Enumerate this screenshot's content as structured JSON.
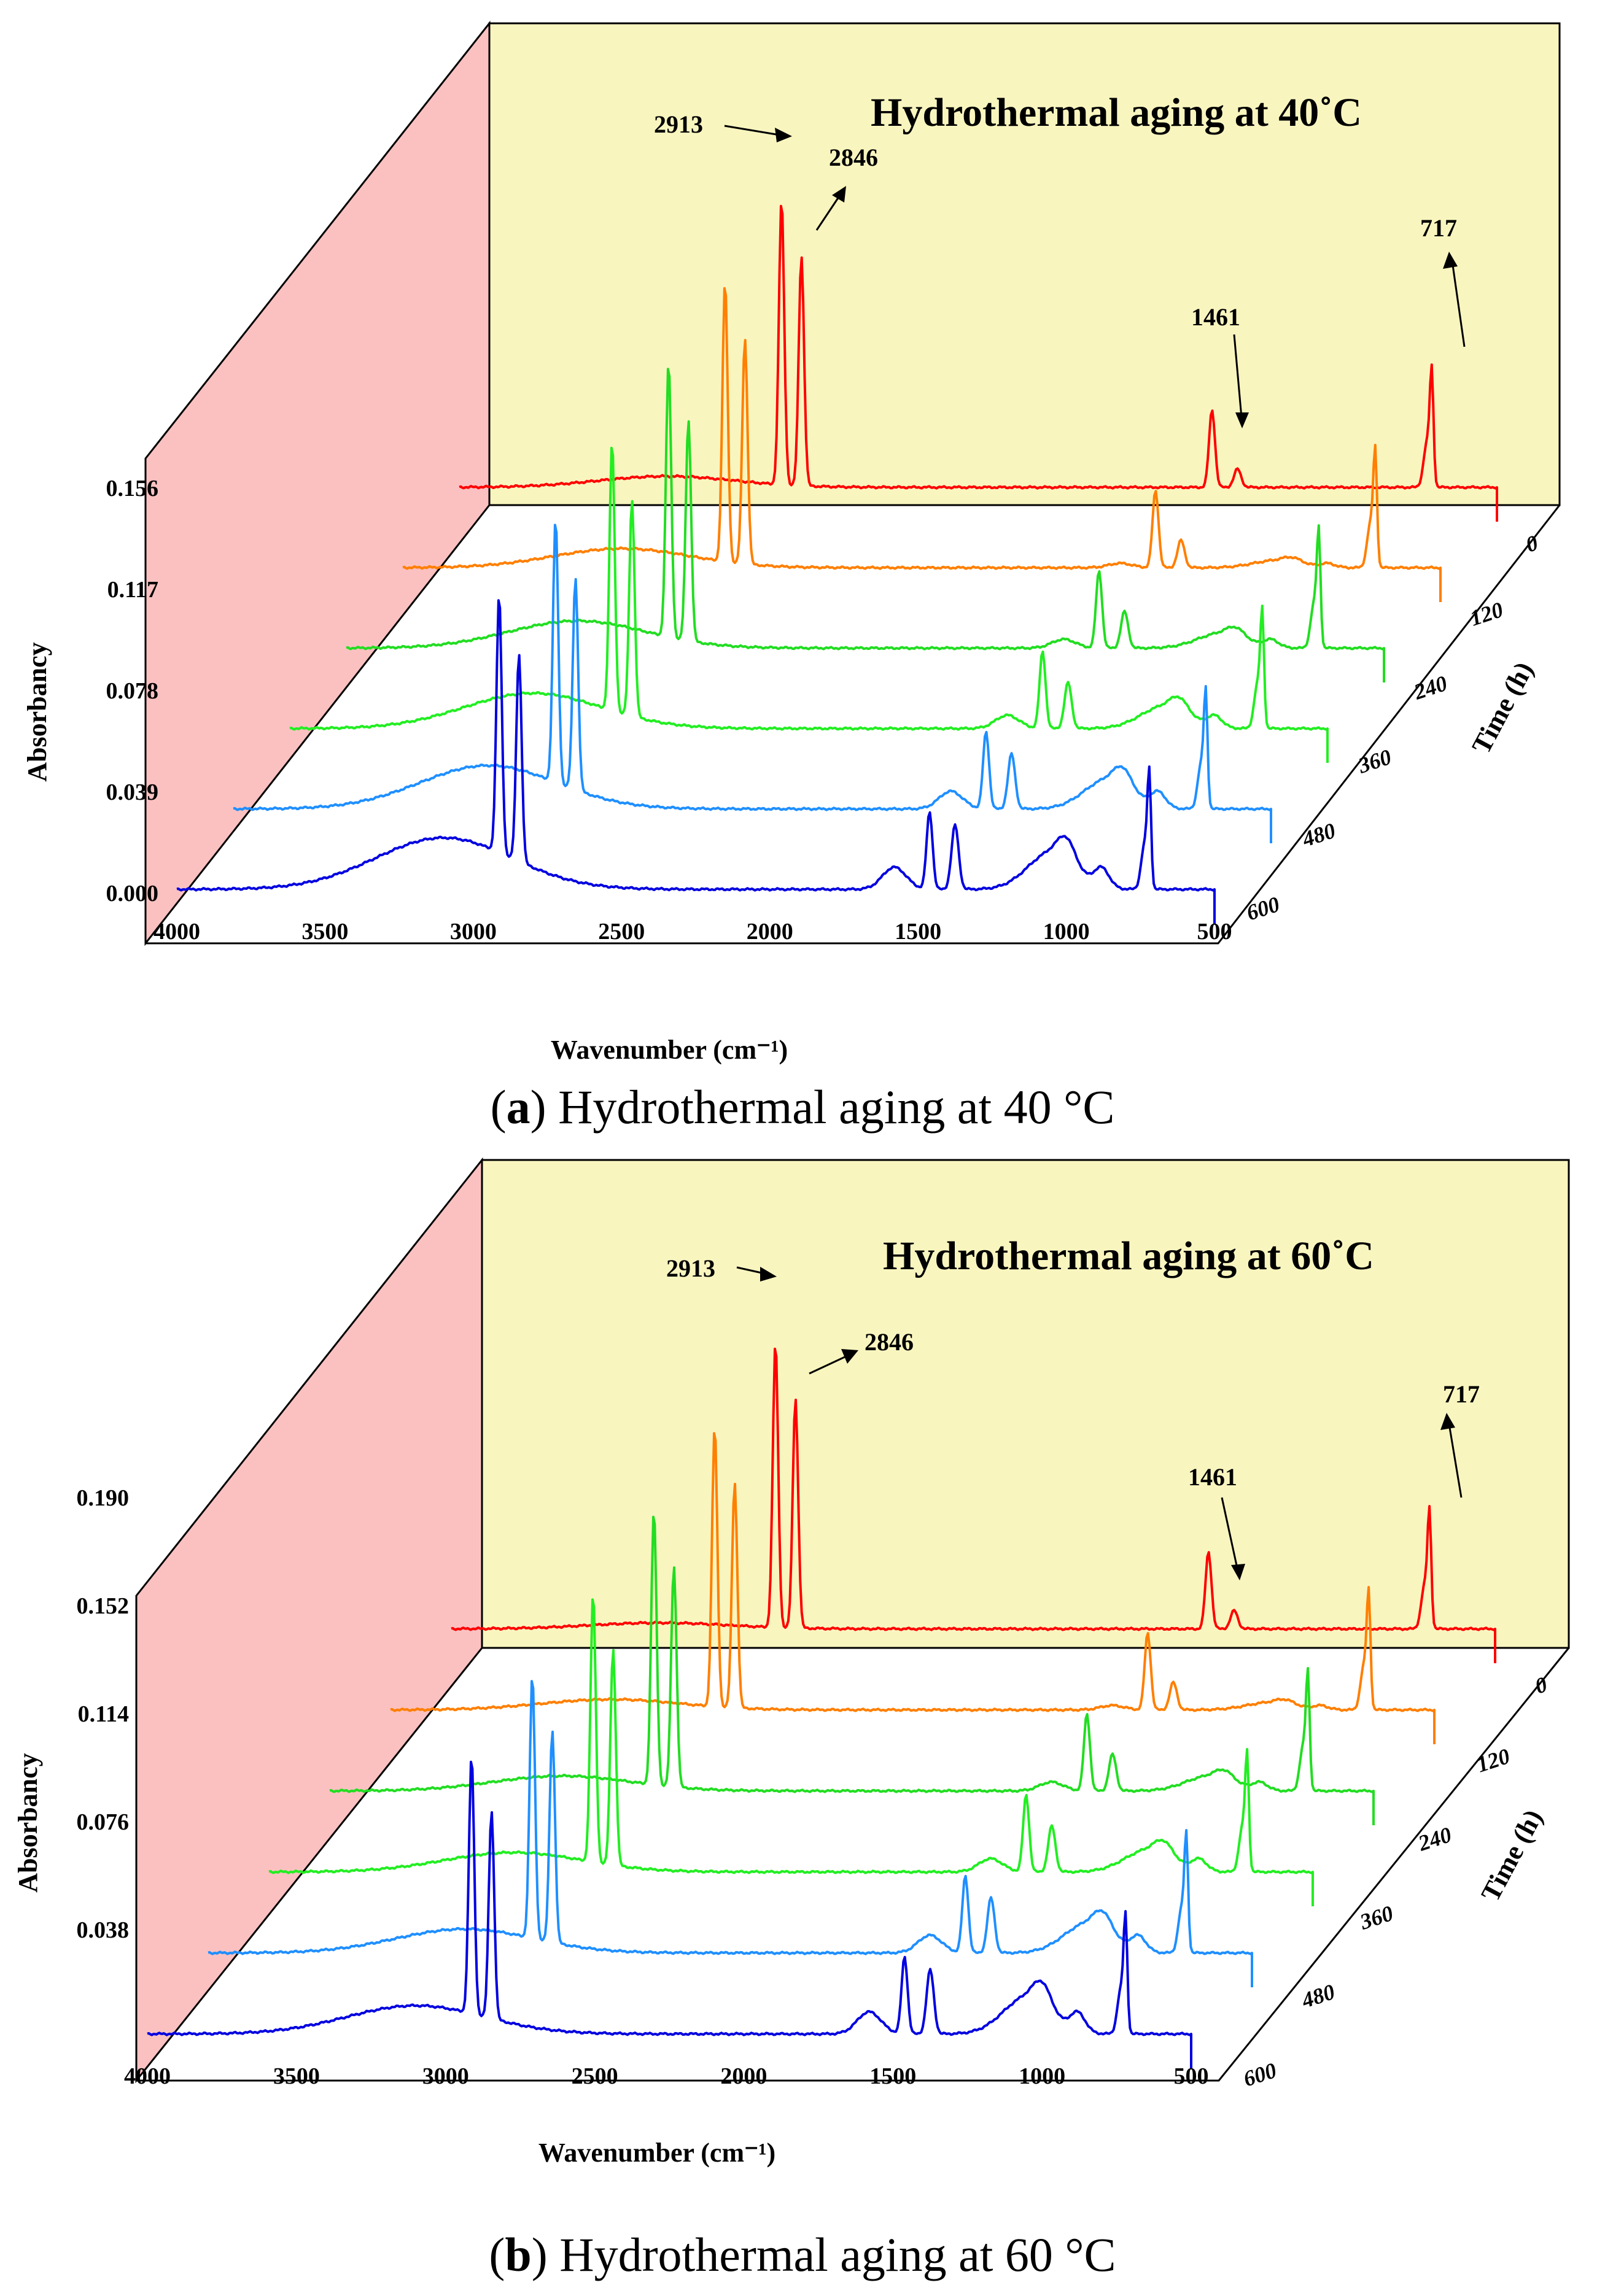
{
  "chart_data": [
    {
      "type": "line",
      "title": "Hydrothermal aging at 40˚C",
      "caption_letter": "a",
      "caption_text": "Hydrothermal aging at 40 °C",
      "caption_open": "(",
      "caption_close": ")",
      "xlabel": "Wavenumber (cm⁻¹)",
      "ylabel": "Absorbancy",
      "zlabel": "Time (h)",
      "xlim": [
        4000,
        500
      ],
      "xticks": [
        "4000",
        "3500",
        "3000",
        "2500",
        "2000",
        "1500",
        "1000",
        "500"
      ],
      "ylim": [
        0,
        0.156
      ],
      "yticks": [
        "0.000",
        "0.039",
        "0.078",
        "0.117",
        "0.156"
      ],
      "zticks": [
        "0",
        "120",
        "240",
        "360",
        "480",
        "600"
      ],
      "series_times": [
        0,
        120,
        240,
        360,
        480,
        600
      ],
      "series_colors": [
        "#ff0000",
        "#ff7f00",
        "#22dd22",
        "#22ee22",
        "#1f8fff",
        "#0000e0"
      ],
      "annotations": [
        "2913",
        "2846",
        "1461",
        "717"
      ]
    },
    {
      "type": "line",
      "title": "Hydrothermal aging at 60˚C",
      "caption_letter": "b",
      "caption_text": "Hydrothermal aging at 60 °C",
      "caption_open": "(",
      "caption_close": ")",
      "xlabel": "Wavenumber (cm⁻¹)",
      "ylabel": "Absorbancy",
      "zlabel": "Time (h)",
      "xlim": [
        4000,
        500
      ],
      "xticks": [
        "4000",
        "3500",
        "3000",
        "2500",
        "2000",
        "1500",
        "1000",
        "500"
      ],
      "ylim": [
        0,
        0.19
      ],
      "yticks": [
        "0.038",
        "0.076",
        "0.114",
        "0.152",
        "0.190"
      ],
      "zticks": [
        "0",
        "120",
        "240",
        "360",
        "480",
        "600"
      ],
      "series_times": [
        0,
        120,
        240,
        360,
        480,
        600
      ],
      "series_colors": [
        "#ff0000",
        "#ff7f00",
        "#22dd22",
        "#22ee22",
        "#1f8fff",
        "#0000e0"
      ],
      "annotations": [
        "2913",
        "2846",
        "1461",
        "717"
      ]
    }
  ]
}
